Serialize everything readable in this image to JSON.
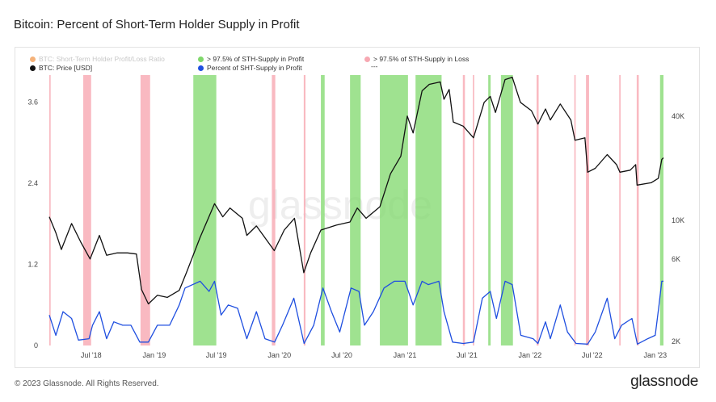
{
  "header": {
    "title": "Bitcoin: Percent of Short-Term Holder Supply in Profit"
  },
  "legend": [
    {
      "label": "BTC: Short-Term Holder Profit/Loss Ratio",
      "color": "#f5b27a",
      "muted": true
    },
    {
      "label": "> 97.5% of STH-Supply in Profit",
      "color": "#7fd86b",
      "muted": false
    },
    {
      "label": "> 97.5% of STH-Supply in Loss",
      "color": "#f7a8b2",
      "muted": false
    },
    {
      "label": "BTC: Price [USD]",
      "color": "#111111",
      "muted": false
    },
    {
      "label": "Percent of SHT-Supply in Profit",
      "color": "#1f4fe0",
      "muted": false
    },
    {
      "label": "---",
      "color": "",
      "muted": false
    }
  ],
  "watermark": "glassnode",
  "footer": {
    "copyright": "© 2023 Glassnode. All Rights Reserved.",
    "brand": "glassnode"
  },
  "colors": {
    "price": "#111111",
    "percent": "#1f4fe0",
    "profit_band": "#7fd86b",
    "loss_band": "#f7a8b2"
  },
  "chart_data": {
    "type": "line",
    "title": "Bitcoin: Percent of Short-Term Holder Supply in Profit",
    "x_ticks": [
      "Jul '18",
      "Jan '19",
      "Jul '19",
      "Jan '20",
      "Jul '20",
      "Jan '21",
      "Jul '21",
      "Jan '22",
      "Jul '22",
      "Jan '23"
    ],
    "x_range": [
      "2018-03-01",
      "2023-01-25"
    ],
    "y_left": {
      "label": "Percent of SHT-Supply in Profit",
      "ticks": [
        "0",
        "1.2",
        "2.4",
        "3.6"
      ],
      "range": [
        0,
        4.0
      ]
    },
    "y_right": {
      "label": "BTC: Price [USD]",
      "scale": "log",
      "ticks": [
        "2K",
        "6K",
        "10K",
        "40K"
      ],
      "range": [
        1900,
        69000
      ]
    },
    "grid": false,
    "legend_position": "top-left",
    "series": [
      {
        "name": "BTC: Price [USD]",
        "axis": "right",
        "points": [
          [
            "2018-03-01",
            10500
          ],
          [
            "2018-03-20",
            8500
          ],
          [
            "2018-04-05",
            6800
          ],
          [
            "2018-05-05",
            9600
          ],
          [
            "2018-06-01",
            7500
          ],
          [
            "2018-06-28",
            6000
          ],
          [
            "2018-07-25",
            8200
          ],
          [
            "2018-08-15",
            6300
          ],
          [
            "2018-09-15",
            6500
          ],
          [
            "2018-10-15",
            6500
          ],
          [
            "2018-11-10",
            6400
          ],
          [
            "2018-11-25",
            4000
          ],
          [
            "2018-12-15",
            3300
          ],
          [
            "2019-01-10",
            3700
          ],
          [
            "2019-02-08",
            3600
          ],
          [
            "2019-03-15",
            3950
          ],
          [
            "2019-04-05",
            5000
          ],
          [
            "2019-05-15",
            8000
          ],
          [
            "2019-06-26",
            12500
          ],
          [
            "2019-07-20",
            10500
          ],
          [
            "2019-08-10",
            11800
          ],
          [
            "2019-09-15",
            10300
          ],
          [
            "2019-09-28",
            8200
          ],
          [
            "2019-10-26",
            9300
          ],
          [
            "2019-12-17",
            6700
          ],
          [
            "2020-01-15",
            8800
          ],
          [
            "2020-02-14",
            10300
          ],
          [
            "2020-03-12",
            5000
          ],
          [
            "2020-04-01",
            6500
          ],
          [
            "2020-05-01",
            8800
          ],
          [
            "2020-06-15",
            9400
          ],
          [
            "2020-07-25",
            9800
          ],
          [
            "2020-08-15",
            11800
          ],
          [
            "2020-09-10",
            10300
          ],
          [
            "2020-10-20",
            12000
          ],
          [
            "2020-11-20",
            18600
          ],
          [
            "2020-12-20",
            23500
          ],
          [
            "2021-01-08",
            40000
          ],
          [
            "2021-01-25",
            32000
          ],
          [
            "2021-02-20",
            56000
          ],
          [
            "2021-03-13",
            61000
          ],
          [
            "2021-04-14",
            63000
          ],
          [
            "2021-04-25",
            50000
          ],
          [
            "2021-05-10",
            57000
          ],
          [
            "2021-05-22",
            37000
          ],
          [
            "2021-06-20",
            35000
          ],
          [
            "2021-07-20",
            30000
          ],
          [
            "2021-08-20",
            48000
          ],
          [
            "2021-09-07",
            52000
          ],
          [
            "2021-09-22",
            42000
          ],
          [
            "2021-10-20",
            65000
          ],
          [
            "2021-11-10",
            67000
          ],
          [
            "2021-12-04",
            48000
          ],
          [
            "2022-01-05",
            43000
          ],
          [
            "2022-01-24",
            36000
          ],
          [
            "2022-02-15",
            44000
          ],
          [
            "2022-03-01",
            38000
          ],
          [
            "2022-03-30",
            47000
          ],
          [
            "2022-04-30",
            38000
          ],
          [
            "2022-05-12",
            29000
          ],
          [
            "2022-06-10",
            30000
          ],
          [
            "2022-06-18",
            19000
          ],
          [
            "2022-07-10",
            20000
          ],
          [
            "2022-08-14",
            24000
          ],
          [
            "2022-09-10",
            21000
          ],
          [
            "2022-09-20",
            19000
          ],
          [
            "2022-10-20",
            19500
          ],
          [
            "2022-11-05",
            21000
          ],
          [
            "2022-11-09",
            16000
          ],
          [
            "2022-12-20",
            16500
          ],
          [
            "2023-01-10",
            17500
          ],
          [
            "2023-01-20",
            22500
          ],
          [
            "2023-01-25",
            23000
          ]
        ]
      },
      {
        "name": "Percent of SHT-Supply in Profit",
        "axis": "left",
        "points": [
          [
            "2018-03-01",
            0.45
          ],
          [
            "2018-03-20",
            0.15
          ],
          [
            "2018-04-10",
            0.5
          ],
          [
            "2018-05-05",
            0.4
          ],
          [
            "2018-05-25",
            0.08
          ],
          [
            "2018-06-25",
            0.1
          ],
          [
            "2018-07-05",
            0.3
          ],
          [
            "2018-07-25",
            0.5
          ],
          [
            "2018-08-15",
            0.1
          ],
          [
            "2018-09-05",
            0.35
          ],
          [
            "2018-10-01",
            0.3
          ],
          [
            "2018-10-25",
            0.3
          ],
          [
            "2018-11-20",
            0.05
          ],
          [
            "2018-12-15",
            0.05
          ],
          [
            "2019-01-10",
            0.3
          ],
          [
            "2019-02-15",
            0.3
          ],
          [
            "2019-03-15",
            0.6
          ],
          [
            "2019-04-01",
            0.85
          ],
          [
            "2019-05-15",
            0.95
          ],
          [
            "2019-06-10",
            0.8
          ],
          [
            "2019-06-26",
            0.95
          ],
          [
            "2019-07-15",
            0.45
          ],
          [
            "2019-08-05",
            0.6
          ],
          [
            "2019-09-01",
            0.55
          ],
          [
            "2019-09-28",
            0.1
          ],
          [
            "2019-10-26",
            0.5
          ],
          [
            "2019-11-20",
            0.1
          ],
          [
            "2019-12-18",
            0.05
          ],
          [
            "2020-01-10",
            0.3
          ],
          [
            "2020-02-12",
            0.7
          ],
          [
            "2020-03-13",
            0.03
          ],
          [
            "2020-04-10",
            0.3
          ],
          [
            "2020-05-07",
            0.85
          ],
          [
            "2020-06-01",
            0.5
          ],
          [
            "2020-06-25",
            0.2
          ],
          [
            "2020-07-28",
            0.85
          ],
          [
            "2020-08-20",
            0.8
          ],
          [
            "2020-09-05",
            0.3
          ],
          [
            "2020-10-01",
            0.5
          ],
          [
            "2020-11-01",
            0.85
          ],
          [
            "2020-12-01",
            0.95
          ],
          [
            "2021-01-01",
            0.95
          ],
          [
            "2021-01-25",
            0.6
          ],
          [
            "2021-02-20",
            0.95
          ],
          [
            "2021-03-10",
            0.9
          ],
          [
            "2021-04-10",
            0.95
          ],
          [
            "2021-04-25",
            0.5
          ],
          [
            "2021-05-20",
            0.05
          ],
          [
            "2021-06-20",
            0.03
          ],
          [
            "2021-07-20",
            0.05
          ],
          [
            "2021-08-15",
            0.7
          ],
          [
            "2021-09-07",
            0.8
          ],
          [
            "2021-09-25",
            0.4
          ],
          [
            "2021-10-20",
            0.95
          ],
          [
            "2021-11-10",
            0.9
          ],
          [
            "2021-12-05",
            0.15
          ],
          [
            "2022-01-10",
            0.1
          ],
          [
            "2022-01-24",
            0.03
          ],
          [
            "2022-02-15",
            0.35
          ],
          [
            "2022-03-01",
            0.1
          ],
          [
            "2022-03-30",
            0.6
          ],
          [
            "2022-04-20",
            0.2
          ],
          [
            "2022-05-15",
            0.03
          ],
          [
            "2022-06-18",
            0.02
          ],
          [
            "2022-07-10",
            0.2
          ],
          [
            "2022-08-14",
            0.7
          ],
          [
            "2022-09-05",
            0.1
          ],
          [
            "2022-09-25",
            0.3
          ],
          [
            "2022-10-25",
            0.4
          ],
          [
            "2022-11-10",
            0.02
          ],
          [
            "2022-12-10",
            0.1
          ],
          [
            "2023-01-01",
            0.15
          ],
          [
            "2023-01-12",
            0.6
          ],
          [
            "2023-01-20",
            0.95
          ],
          [
            "2023-01-25",
            0.95
          ]
        ]
      },
      {
        "name": "> 97.5% of STH-Supply in Profit",
        "kind": "band",
        "ranges": [
          [
            "2019-04-25",
            "2019-07-01"
          ],
          [
            "2020-05-01",
            "2020-05-12"
          ],
          [
            "2020-07-25",
            "2020-08-25"
          ],
          [
            "2020-10-20",
            "2021-01-10"
          ],
          [
            "2021-02-01",
            "2021-04-18"
          ],
          [
            "2021-09-01",
            "2021-09-08"
          ],
          [
            "2021-10-08",
            "2021-11-12"
          ],
          [
            "2023-01-15",
            "2023-01-25"
          ]
        ]
      },
      {
        "name": "> 97.5% of STH-Supply in Loss",
        "kind": "band",
        "ranges": [
          [
            "2018-03-01",
            "2018-03-05"
          ],
          [
            "2018-06-08",
            "2018-07-01"
          ],
          [
            "2018-11-22",
            "2018-12-20"
          ],
          [
            "2019-12-10",
            "2019-12-20"
          ],
          [
            "2020-03-12",
            "2020-03-17"
          ],
          [
            "2021-06-19",
            "2021-06-25"
          ],
          [
            "2021-07-18",
            "2021-07-22"
          ],
          [
            "2022-01-20",
            "2022-01-26"
          ],
          [
            "2022-05-10",
            "2022-05-14"
          ],
          [
            "2022-06-13",
            "2022-06-22"
          ],
          [
            "2022-09-18",
            "2022-09-22"
          ],
          [
            "2022-11-08",
            "2022-11-14"
          ]
        ]
      }
    ]
  }
}
